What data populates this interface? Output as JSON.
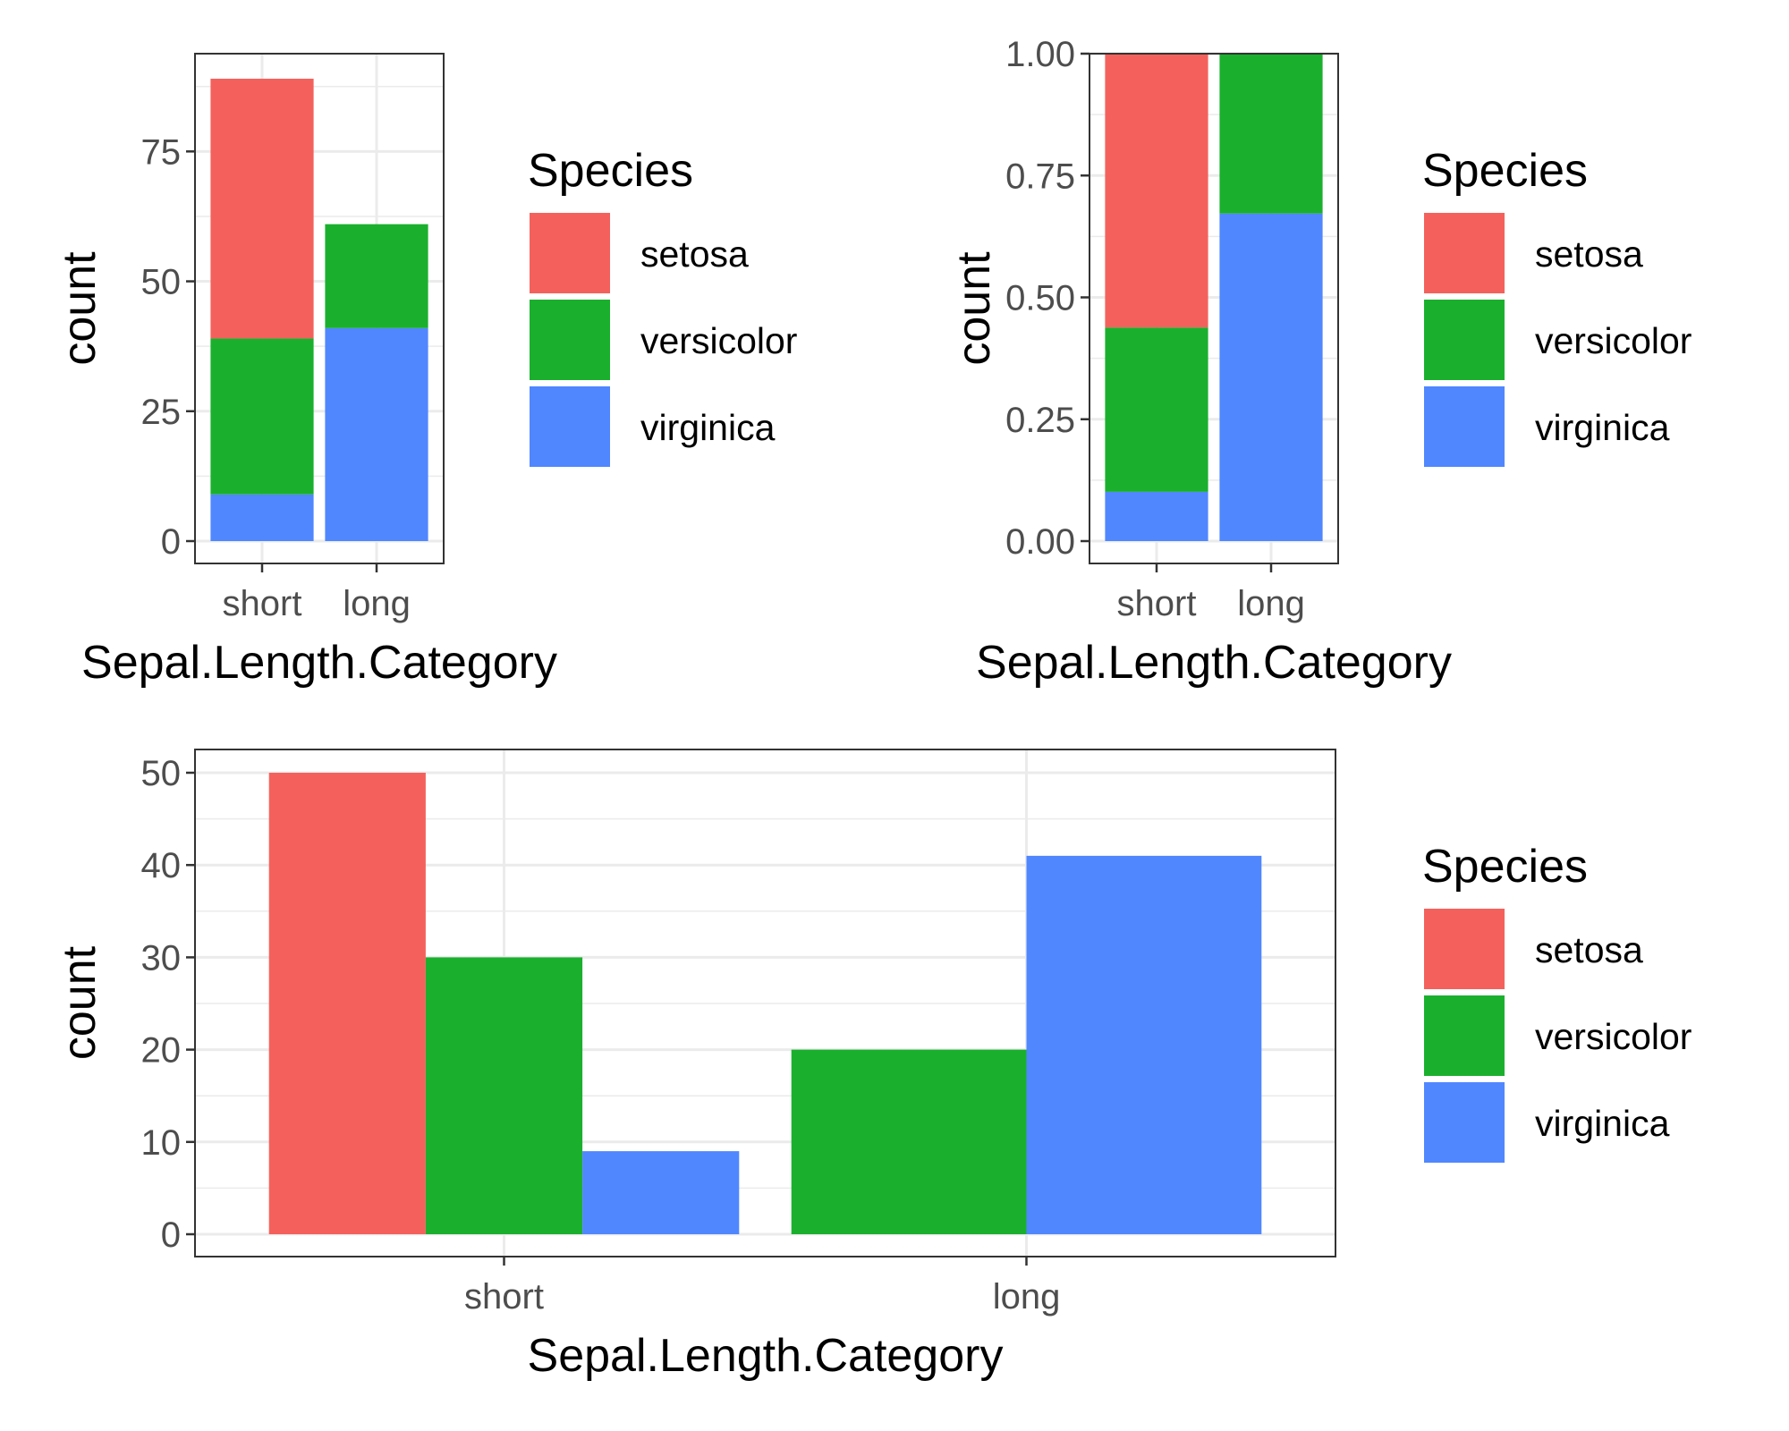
{
  "colors": {
    "setosa": "#F4615C",
    "versicolor": "#1AB02E",
    "virginica": "#5087FF",
    "grid": "#EBEBEB",
    "panel_border": "#333333",
    "tick_text": "#4D4D4D"
  },
  "chart_data": [
    {
      "type": "bar",
      "position": "stack",
      "categories": [
        "short",
        "long"
      ],
      "series": [
        {
          "name": "setosa",
          "values": [
            50,
            0
          ]
        },
        {
          "name": "versicolor",
          "values": [
            30,
            20
          ]
        },
        {
          "name": "virginica",
          "values": [
            9,
            41
          ]
        }
      ],
      "xlabel": "Sepal.Length.Category",
      "ylabel": "count",
      "yticks": [
        "0",
        "25",
        "50",
        "75"
      ],
      "ylim": [
        0,
        89
      ],
      "grid": true,
      "legend": {
        "title": "Species",
        "placement": "right",
        "entries": [
          "setosa",
          "versicolor",
          "virginica"
        ]
      }
    },
    {
      "type": "bar",
      "position": "fill",
      "categories": [
        "short",
        "long"
      ],
      "series": [
        {
          "name": "setosa",
          "values": [
            0.5618,
            0
          ]
        },
        {
          "name": "versicolor",
          "values": [
            0.3371,
            0.3279
          ]
        },
        {
          "name": "virginica",
          "values": [
            0.1011,
            0.6721
          ]
        }
      ],
      "xlabel": "Sepal.Length.Category",
      "ylabel": "count",
      "yticks": [
        "0.00",
        "0.25",
        "0.50",
        "0.75",
        "1.00"
      ],
      "ylim": [
        0,
        1
      ],
      "grid": true,
      "legend": {
        "title": "Species",
        "placement": "right",
        "entries": [
          "setosa",
          "versicolor",
          "virginica"
        ]
      }
    },
    {
      "type": "bar",
      "position": "dodge",
      "categories": [
        "short",
        "long"
      ],
      "series": [
        {
          "name": "setosa",
          "values": [
            50,
            null
          ]
        },
        {
          "name": "versicolor",
          "values": [
            30,
            20
          ]
        },
        {
          "name": "virginica",
          "values": [
            9,
            41
          ]
        }
      ],
      "xlabel": "Sepal.Length.Category",
      "ylabel": "count",
      "yticks": [
        "0",
        "10",
        "20",
        "30",
        "40",
        "50"
      ],
      "ylim": [
        0,
        50
      ],
      "grid": true,
      "legend": {
        "title": "Species",
        "placement": "right",
        "entries": [
          "setosa",
          "versicolor",
          "virginica"
        ]
      }
    }
  ]
}
